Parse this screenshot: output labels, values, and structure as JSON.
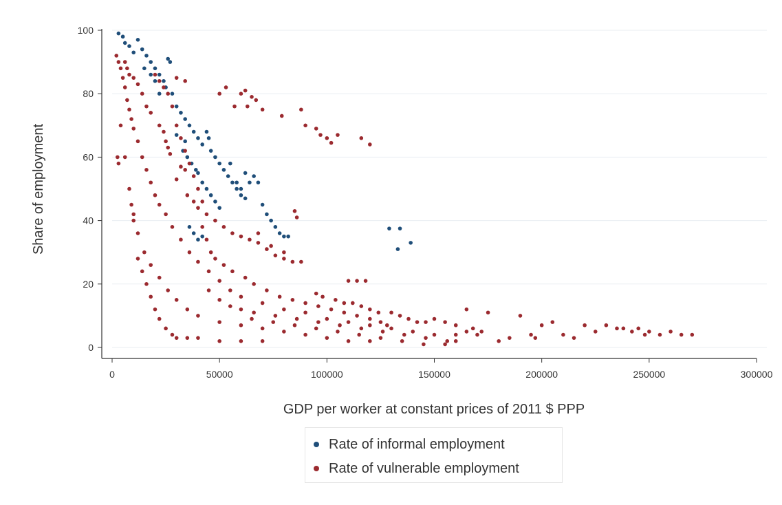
{
  "chart_data": {
    "type": "scatter",
    "title": "",
    "xlabel": "GDP per worker at constant prices of 2011 $ PPP",
    "ylabel": "Share of employment",
    "xlim": [
      0,
      300000
    ],
    "ylim": [
      0,
      100
    ],
    "x_ticks": [
      "0",
      "50000",
      "100000",
      "150000",
      "200000",
      "250000",
      "300000"
    ],
    "y_ticks": [
      "0",
      "20",
      "40",
      "60",
      "80",
      "100"
    ],
    "grid": "horizontal",
    "legend_position": "bottom",
    "series": [
      {
        "name": "Rate of informal employment",
        "color": "#1f4e79",
        "points": [
          [
            3000,
            99
          ],
          [
            5000,
            98
          ],
          [
            6000,
            96
          ],
          [
            8000,
            95
          ],
          [
            10000,
            93
          ],
          [
            12000,
            97
          ],
          [
            14000,
            94
          ],
          [
            16000,
            92
          ],
          [
            18000,
            90
          ],
          [
            20000,
            88
          ],
          [
            22000,
            86
          ],
          [
            24000,
            84
          ],
          [
            26000,
            91
          ],
          [
            27000,
            90
          ],
          [
            25000,
            82
          ],
          [
            28000,
            80
          ],
          [
            30000,
            76
          ],
          [
            32000,
            74
          ],
          [
            34000,
            72
          ],
          [
            36000,
            70
          ],
          [
            38000,
            68
          ],
          [
            40000,
            66
          ],
          [
            42000,
            64
          ],
          [
            44000,
            68
          ],
          [
            45000,
            66
          ],
          [
            46000,
            62
          ],
          [
            48000,
            60
          ],
          [
            50000,
            58
          ],
          [
            52000,
            56
          ],
          [
            54000,
            54
          ],
          [
            56000,
            52
          ],
          [
            58000,
            50
          ],
          [
            60000,
            48
          ],
          [
            62000,
            47
          ],
          [
            64000,
            52
          ],
          [
            66000,
            54
          ],
          [
            68000,
            52
          ],
          [
            70000,
            45
          ],
          [
            72000,
            42
          ],
          [
            74000,
            40
          ],
          [
            76000,
            38
          ],
          [
            78000,
            36
          ],
          [
            80000,
            35
          ],
          [
            82000,
            35
          ],
          [
            40000,
            55
          ],
          [
            42000,
            52
          ],
          [
            44000,
            50
          ],
          [
            46000,
            48
          ],
          [
            48000,
            46
          ],
          [
            50000,
            44
          ],
          [
            36000,
            38
          ],
          [
            38000,
            36
          ],
          [
            40000,
            34
          ],
          [
            42000,
            35
          ],
          [
            33000,
            62
          ],
          [
            35000,
            60
          ],
          [
            37000,
            58
          ],
          [
            39000,
            56
          ],
          [
            30000,
            67
          ],
          [
            34000,
            65
          ],
          [
            22000,
            80
          ],
          [
            20000,
            84
          ],
          [
            18000,
            86
          ],
          [
            15000,
            88
          ],
          [
            129000,
            37.5
          ],
          [
            134000,
            37.5
          ],
          [
            133000,
            31
          ],
          [
            139000,
            33
          ],
          [
            58000,
            52
          ],
          [
            60000,
            50
          ],
          [
            55000,
            58
          ],
          [
            62000,
            55
          ]
        ]
      },
      {
        "name": "Rate of vulnerable employment",
        "color": "#9b2a2f",
        "points": [
          [
            2000,
            92
          ],
          [
            3000,
            90
          ],
          [
            4000,
            88
          ],
          [
            5000,
            85
          ],
          [
            6000,
            82
          ],
          [
            7000,
            78
          ],
          [
            8000,
            75
          ],
          [
            9000,
            72
          ],
          [
            10000,
            69
          ],
          [
            12000,
            65
          ],
          [
            14000,
            60
          ],
          [
            16000,
            56
          ],
          [
            18000,
            52
          ],
          [
            20000,
            48
          ],
          [
            22000,
            45
          ],
          [
            25000,
            42
          ],
          [
            28000,
            38
          ],
          [
            32000,
            34
          ],
          [
            36000,
            30
          ],
          [
            40000,
            27
          ],
          [
            45000,
            24
          ],
          [
            50000,
            21
          ],
          [
            55000,
            18
          ],
          [
            60000,
            16
          ],
          [
            70000,
            14
          ],
          [
            80000,
            12
          ],
          [
            90000,
            11
          ],
          [
            100000,
            9
          ],
          [
            110000,
            8
          ],
          [
            120000,
            7
          ],
          [
            130000,
            6
          ],
          [
            140000,
            5
          ],
          [
            150000,
            4
          ],
          [
            160000,
            4
          ],
          [
            4000,
            70
          ],
          [
            6000,
            60
          ],
          [
            8000,
            50
          ],
          [
            10000,
            42
          ],
          [
            12000,
            36
          ],
          [
            15000,
            30
          ],
          [
            18000,
            26
          ],
          [
            22000,
            22
          ],
          [
            26000,
            18
          ],
          [
            30000,
            15
          ],
          [
            35000,
            12
          ],
          [
            40000,
            10
          ],
          [
            50000,
            8
          ],
          [
            60000,
            7
          ],
          [
            70000,
            6
          ],
          [
            80000,
            5
          ],
          [
            90000,
            4
          ],
          [
            100000,
            3
          ],
          [
            110000,
            2
          ],
          [
            120000,
            2
          ],
          [
            2500,
            60
          ],
          [
            3000,
            58
          ],
          [
            9000,
            45
          ],
          [
            10000,
            40
          ],
          [
            12000,
            28
          ],
          [
            14000,
            24
          ],
          [
            16000,
            20
          ],
          [
            18000,
            16
          ],
          [
            20000,
            12
          ],
          [
            22000,
            9
          ],
          [
            25000,
            6
          ],
          [
            28000,
            4
          ],
          [
            30000,
            3
          ],
          [
            35000,
            3
          ],
          [
            40000,
            3
          ],
          [
            50000,
            2
          ],
          [
            60000,
            2
          ],
          [
            70000,
            2
          ],
          [
            20000,
            86
          ],
          [
            22000,
            84
          ],
          [
            24000,
            82
          ],
          [
            26000,
            80
          ],
          [
            28000,
            76
          ],
          [
            30000,
            70
          ],
          [
            32000,
            66
          ],
          [
            34000,
            62
          ],
          [
            36000,
            58
          ],
          [
            38000,
            54
          ],
          [
            40000,
            50
          ],
          [
            42000,
            46
          ],
          [
            44000,
            42
          ],
          [
            48000,
            40
          ],
          [
            52000,
            38
          ],
          [
            56000,
            36
          ],
          [
            60000,
            35
          ],
          [
            64000,
            34
          ],
          [
            68000,
            33
          ],
          [
            72000,
            31
          ],
          [
            76000,
            29
          ],
          [
            80000,
            28
          ],
          [
            84000,
            27
          ],
          [
            88000,
            27
          ],
          [
            50000,
            80
          ],
          [
            53000,
            82
          ],
          [
            60000,
            80
          ],
          [
            62000,
            81
          ],
          [
            65000,
            79
          ],
          [
            67000,
            78
          ],
          [
            57000,
            76
          ],
          [
            63000,
            76
          ],
          [
            70000,
            75
          ],
          [
            79000,
            73
          ],
          [
            88000,
            75
          ],
          [
            90000,
            70
          ],
          [
            95000,
            69
          ],
          [
            97000,
            67
          ],
          [
            100000,
            66
          ],
          [
            102000,
            64.5
          ],
          [
            105000,
            67
          ],
          [
            116000,
            66
          ],
          [
            120000,
            64
          ],
          [
            85000,
            43
          ],
          [
            86000,
            41
          ],
          [
            110000,
            21
          ],
          [
            114000,
            21
          ],
          [
            118000,
            21
          ],
          [
            42000,
            38
          ],
          [
            44000,
            34
          ],
          [
            46000,
            30
          ],
          [
            48000,
            28
          ],
          [
            52000,
            26
          ],
          [
            56000,
            24
          ],
          [
            62000,
            22
          ],
          [
            66000,
            20
          ],
          [
            72000,
            18
          ],
          [
            78000,
            16
          ],
          [
            84000,
            15
          ],
          [
            90000,
            14
          ],
          [
            96000,
            13
          ],
          [
            102000,
            12
          ],
          [
            108000,
            11
          ],
          [
            114000,
            10
          ],
          [
            120000,
            9
          ],
          [
            125000,
            8
          ],
          [
            128000,
            7
          ],
          [
            60000,
            12
          ],
          [
            66000,
            11
          ],
          [
            76000,
            10
          ],
          [
            86000,
            9
          ],
          [
            96000,
            8
          ],
          [
            106000,
            7
          ],
          [
            116000,
            6
          ],
          [
            126000,
            5
          ],
          [
            136000,
            4
          ],
          [
            146000,
            3
          ],
          [
            156000,
            2
          ],
          [
            160000,
            2
          ],
          [
            165000,
            5
          ],
          [
            170000,
            4
          ],
          [
            175000,
            11
          ],
          [
            180000,
            2
          ],
          [
            185000,
            3
          ],
          [
            190000,
            10
          ],
          [
            195000,
            4
          ],
          [
            197000,
            3
          ],
          [
            200000,
            7
          ],
          [
            205000,
            8
          ],
          [
            210000,
            4
          ],
          [
            215000,
            3
          ],
          [
            220000,
            7
          ],
          [
            225000,
            5
          ],
          [
            230000,
            7
          ],
          [
            235000,
            6
          ],
          [
            238000,
            6
          ],
          [
            242000,
            5
          ],
          [
            245000,
            6
          ],
          [
            248000,
            4
          ],
          [
            250000,
            5
          ],
          [
            255000,
            4
          ],
          [
            260000,
            5
          ],
          [
            265000,
            4
          ],
          [
            270000,
            4
          ],
          [
            130000,
            11
          ],
          [
            134000,
            10
          ],
          [
            138000,
            9
          ],
          [
            142000,
            8
          ],
          [
            146000,
            8
          ],
          [
            150000,
            9
          ],
          [
            155000,
            8
          ],
          [
            160000,
            7
          ],
          [
            165000,
            12
          ],
          [
            168000,
            6
          ],
          [
            172000,
            5
          ],
          [
            95000,
            17
          ],
          [
            98000,
            16
          ],
          [
            104000,
            15
          ],
          [
            108000,
            14
          ],
          [
            112000,
            14
          ],
          [
            116000,
            13
          ],
          [
            120000,
            12
          ],
          [
            124000,
            11
          ],
          [
            35000,
            48
          ],
          [
            38000,
            46
          ],
          [
            40000,
            44
          ],
          [
            30000,
            53
          ],
          [
            32000,
            57
          ],
          [
            34000,
            56
          ],
          [
            25000,
            65
          ],
          [
            26000,
            63
          ],
          [
            27000,
            61
          ],
          [
            22000,
            70
          ],
          [
            24000,
            68
          ],
          [
            16000,
            76
          ],
          [
            14000,
            80
          ],
          [
            12000,
            83
          ],
          [
            10000,
            85
          ],
          [
            18000,
            74
          ],
          [
            6000,
            90
          ],
          [
            7000,
            88
          ],
          [
            8000,
            86
          ],
          [
            30000,
            85
          ],
          [
            34000,
            84
          ],
          [
            68000,
            36
          ],
          [
            74000,
            32
          ],
          [
            80000,
            30
          ],
          [
            45000,
            18
          ],
          [
            50000,
            15
          ],
          [
            55000,
            13
          ],
          [
            65000,
            9
          ],
          [
            75000,
            8
          ],
          [
            85000,
            7
          ],
          [
            95000,
            6
          ],
          [
            105000,
            5
          ],
          [
            115000,
            4
          ],
          [
            125000,
            3
          ],
          [
            135000,
            2
          ],
          [
            145000,
            1
          ],
          [
            155000,
            1
          ]
        ]
      }
    ]
  }
}
